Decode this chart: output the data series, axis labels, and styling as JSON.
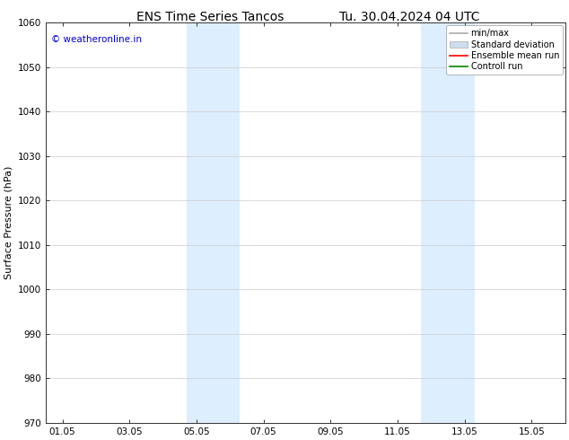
{
  "title_left": "ENS Time Series Tancos",
  "title_right": "Tu. 30.04.2024 04 UTC",
  "ylabel": "Surface Pressure (hPa)",
  "ylim": [
    970,
    1060
  ],
  "yticks": [
    970,
    980,
    990,
    1000,
    1010,
    1020,
    1030,
    1040,
    1050,
    1060
  ],
  "xlim_start": -0.5,
  "xlim_end": 15.0,
  "xtick_positions": [
    0,
    2,
    4,
    6,
    8,
    10,
    12,
    14
  ],
  "xtick_labels": [
    "01.05",
    "03.05",
    "05.05",
    "07.05",
    "09.05",
    "11.05",
    "13.05",
    "15.05"
  ],
  "shaded_bands": [
    {
      "xmin": 3.7,
      "xmax": 5.3,
      "color": "#ddeeff"
    },
    {
      "xmin": 10.7,
      "xmax": 12.3,
      "color": "#ddeeff"
    }
  ],
  "watermark_text": "© weatheronline.in",
  "watermark_color": "#0000cc",
  "legend_entries": [
    {
      "label": "min/max",
      "color": "#aaaaaa",
      "lw": 1.2
    },
    {
      "label": "Standard deviation",
      "color": "#ccddee",
      "lw": 5
    },
    {
      "label": "Ensemble mean run",
      "color": "#ff0000",
      "lw": 1.2
    },
    {
      "label": "Controll run",
      "color": "#008800",
      "lw": 1.2
    }
  ],
  "bg_color": "#ffffff",
  "plot_bg_color": "#ffffff",
  "grid_color": "#cccccc",
  "tick_color": "#333333",
  "spine_color": "#333333",
  "title_fontsize": 10,
  "label_fontsize": 8,
  "tick_fontsize": 7.5,
  "legend_fontsize": 7.0
}
